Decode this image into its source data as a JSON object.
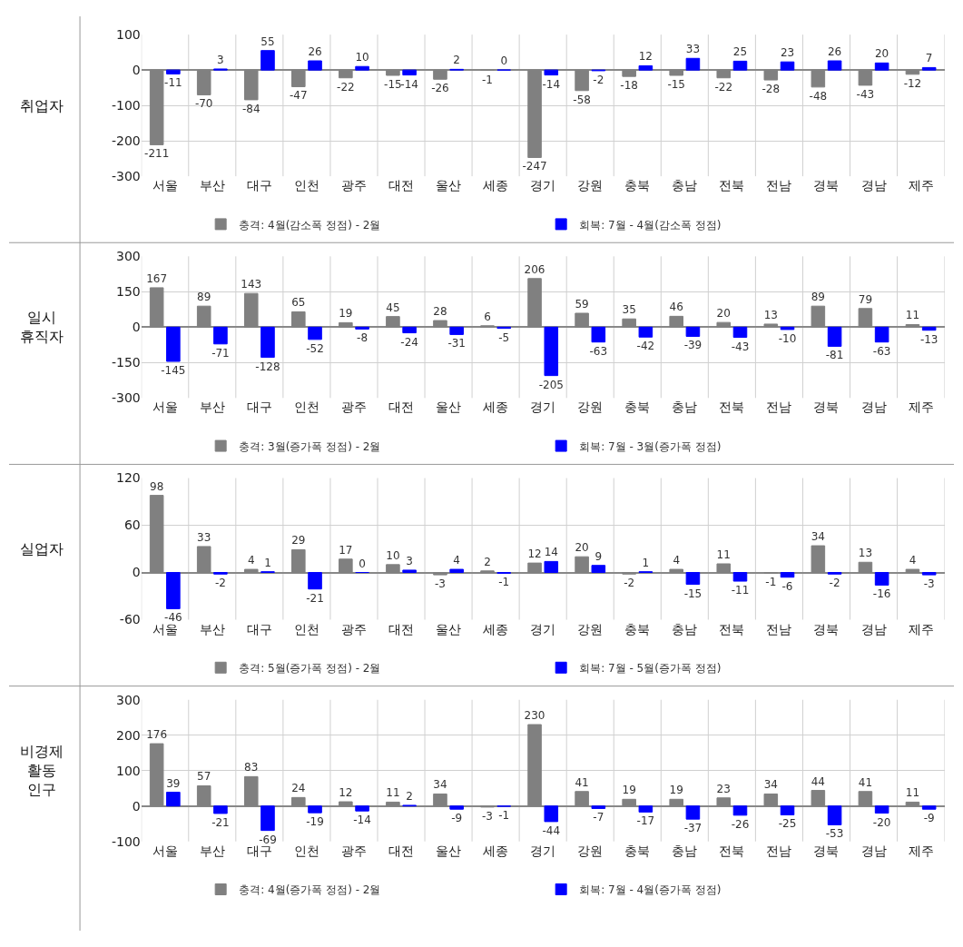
{
  "chart_data": [
    {
      "type": "bar",
      "ylabel": "취업자",
      "categories": [
        "서울",
        "부산",
        "대구",
        "인천",
        "광주",
        "대전",
        "울산",
        "세종",
        "경기",
        "강원",
        "충북",
        "충남",
        "전북",
        "전남",
        "경북",
        "경남",
        "제주"
      ],
      "series": [
        {
          "name": "충격: 4월(감소폭 정점) - 2월",
          "color": "#808080",
          "values": [
            -211,
            -70,
            -84,
            -47,
            -22,
            -15,
            -26,
            -1,
            -247,
            -58,
            -18,
            -15,
            -22,
            -28,
            -48,
            -43,
            -12
          ]
        },
        {
          "name": "회복: 7월 - 4월(감소폭 정점)",
          "color": "#0000ff",
          "values": [
            -11,
            3,
            55,
            26,
            10,
            -14,
            2,
            0,
            -14,
            -2,
            12,
            33,
            25,
            23,
            26,
            20,
            7
          ]
        }
      ],
      "ylim": [
        -300,
        100
      ],
      "yticks": [
        -300,
        -200,
        -100,
        0,
        100
      ],
      "grid": true,
      "legend": "bottom",
      "data_labels": true
    },
    {
      "type": "bar",
      "ylabel": "일시\n휴직자",
      "categories": [
        "서울",
        "부산",
        "대구",
        "인천",
        "광주",
        "대전",
        "울산",
        "세종",
        "경기",
        "강원",
        "충북",
        "충남",
        "전북",
        "전남",
        "경북",
        "경남",
        "제주"
      ],
      "series": [
        {
          "name": "충격: 3월(증가폭 정점) - 2월",
          "color": "#808080",
          "values": [
            167,
            89,
            143,
            65,
            19,
            45,
            28,
            6,
            206,
            59,
            35,
            46,
            20,
            13,
            89,
            79,
            11
          ]
        },
        {
          "name": "회복: 7월 - 3월(증가폭 정점)",
          "color": "#0000ff",
          "values": [
            -145,
            -71,
            -128,
            -52,
            -8,
            -24,
            -31,
            -5,
            -205,
            -63,
            -42,
            -39,
            -43,
            -10,
            -81,
            -63,
            -13
          ]
        }
      ],
      "ylim": [
        -300,
        300
      ],
      "yticks": [
        -300,
        -150,
        0,
        150,
        300
      ],
      "grid": true,
      "legend": "bottom",
      "data_labels": true
    },
    {
      "type": "bar",
      "ylabel": "실업자",
      "categories": [
        "서울",
        "부산",
        "대구",
        "인천",
        "광주",
        "대전",
        "울산",
        "세종",
        "경기",
        "강원",
        "충북",
        "충남",
        "전북",
        "전남",
        "경북",
        "경남",
        "제주"
      ],
      "series": [
        {
          "name": "충격: 5월(증가폭 정점) - 2월",
          "color": "#808080",
          "values": [
            98,
            33,
            4,
            29,
            17,
            10,
            -3,
            2,
            12,
            20,
            -2,
            4,
            11,
            -1,
            34,
            13,
            4
          ]
        },
        {
          "name": "회복: 7월 - 5월(증가폭 정점)",
          "color": "#0000ff",
          "values": [
            -46,
            -2,
            1,
            -21,
            0,
            3,
            4,
            -1,
            14,
            9,
            1,
            -15,
            -11,
            -6,
            -2,
            -16,
            -3
          ]
        }
      ],
      "ylim": [
        -60,
        120
      ],
      "yticks": [
        -60,
        0,
        60,
        120
      ],
      "grid": true,
      "legend": "bottom",
      "data_labels": true
    },
    {
      "type": "bar",
      "ylabel": "비경제\n활동\n인구",
      "categories": [
        "서울",
        "부산",
        "대구",
        "인천",
        "광주",
        "대전",
        "울산",
        "세종",
        "경기",
        "강원",
        "충북",
        "충남",
        "전북",
        "전남",
        "경북",
        "경남",
        "제주"
      ],
      "series": [
        {
          "name": "충격: 4월(증가폭 정점) - 2월",
          "color": "#808080",
          "values": [
            176,
            57,
            83,
            24,
            12,
            11,
            34,
            -3,
            230,
            41,
            19,
            19,
            23,
            34,
            44,
            41,
            11
          ]
        },
        {
          "name": "회복: 7월 - 4월(증가폭 정점)",
          "color": "#0000ff",
          "values": [
            39,
            -21,
            -69,
            -19,
            -14,
            2,
            -9,
            -1,
            -44,
            -7,
            -17,
            -37,
            -26,
            -25,
            -53,
            -20,
            -9
          ]
        }
      ],
      "ylim": [
        -100,
        300
      ],
      "yticks": [
        -100,
        0,
        100,
        200,
        300
      ],
      "grid": true,
      "legend": "bottom",
      "data_labels": true
    }
  ]
}
